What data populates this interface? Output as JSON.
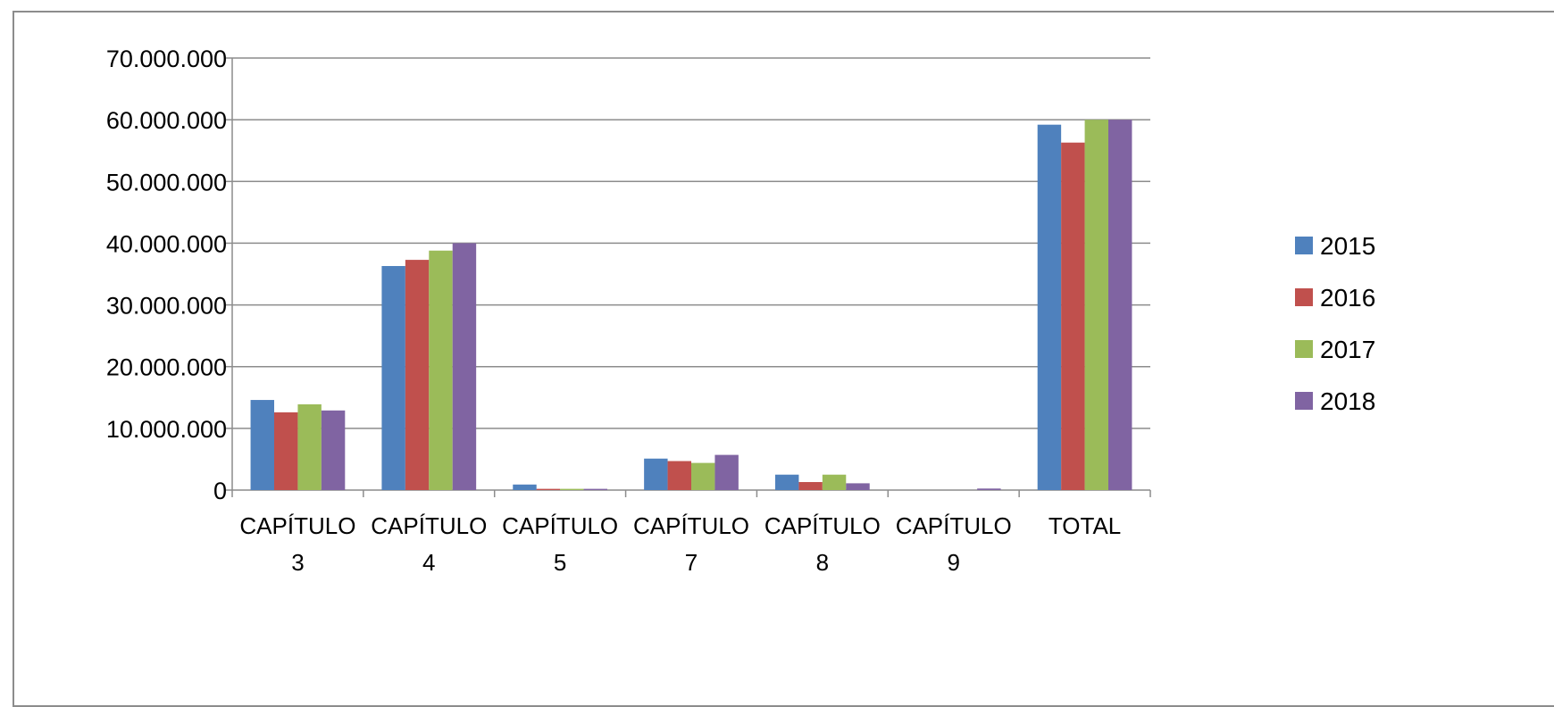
{
  "chart_data": {
    "type": "bar",
    "categories": [
      [
        "CAPÍTULO",
        "3"
      ],
      [
        "CAPÍTULO",
        "4"
      ],
      [
        "CAPÍTULO",
        "5"
      ],
      [
        "CAPÍTULO",
        "7"
      ],
      [
        "CAPÍTULO",
        "8"
      ],
      [
        "CAPÍTULO",
        "9"
      ],
      [
        "TOTAL"
      ]
    ],
    "series": [
      {
        "name": "2015",
        "color": "#4f81bd",
        "values": [
          14600000,
          36300000,
          900000,
          5100000,
          2500000,
          0,
          59200000
        ]
      },
      {
        "name": "2016",
        "color": "#c0504d",
        "values": [
          12600000,
          37300000,
          200000,
          4700000,
          1300000,
          0,
          56300000
        ]
      },
      {
        "name": "2017",
        "color": "#9bbb59",
        "values": [
          13900000,
          38800000,
          200000,
          4400000,
          2500000,
          0,
          60000000
        ]
      },
      {
        "name": "2018",
        "color": "#8064a2",
        "values": [
          12900000,
          40000000,
          200000,
          5700000,
          1100000,
          250000,
          60000000
        ]
      }
    ],
    "ylim": [
      0,
      70000000
    ],
    "yticks": [
      0,
      10000000,
      20000000,
      30000000,
      40000000,
      50000000,
      60000000,
      70000000
    ],
    "ytick_labels": [
      "0",
      "10.000.000",
      "20.000.000",
      "30.000.000",
      "40.000.000",
      "50.000.000",
      "60.000.000",
      "70.000.000"
    ],
    "grid": true,
    "legend_position": "right",
    "title": "",
    "xlabel": "",
    "ylabel": ""
  }
}
